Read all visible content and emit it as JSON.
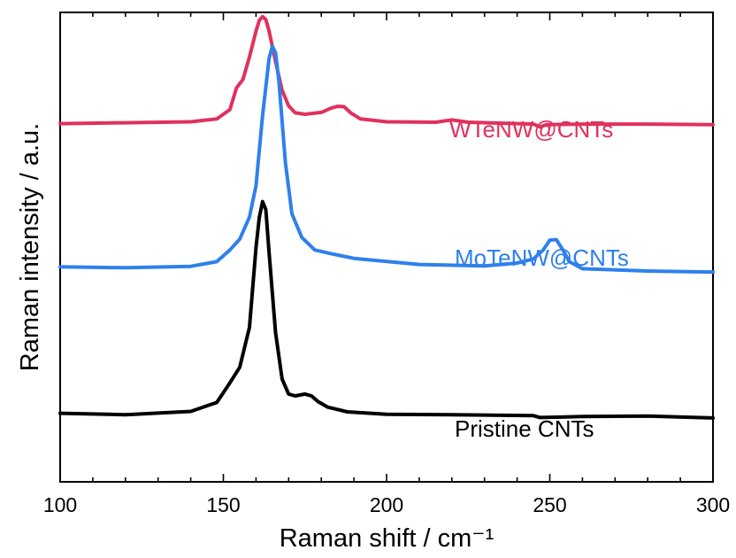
{
  "chart_data": {
    "type": "line",
    "title": "",
    "xlabel": "Raman shift / cm⁻¹",
    "ylabel": "Raman intensity / a.u.",
    "xlim": [
      100,
      300
    ],
    "ylim": [
      0,
      1
    ],
    "x_ticks": [
      100,
      150,
      200,
      250,
      300
    ],
    "x_tick_labels": [
      "100",
      "150",
      "200",
      "250",
      "300"
    ],
    "y_ticks_labeled": false,
    "grid": false,
    "legend": "inline labels above each trace",
    "series": [
      {
        "name": "WTeNW@CNTs",
        "color": "#e0315d",
        "x": [
          100,
          120,
          140,
          148,
          152,
          154,
          156,
          158,
          160,
          161,
          162,
          163,
          164,
          166,
          168,
          170,
          172,
          175,
          180,
          183,
          185,
          187,
          189,
          192,
          200,
          215,
          220,
          225,
          245,
          247,
          249,
          260,
          280,
          300
        ],
        "y": [
          0.763,
          0.765,
          0.767,
          0.773,
          0.793,
          0.839,
          0.857,
          0.905,
          0.96,
          0.983,
          0.991,
          0.985,
          0.96,
          0.895,
          0.834,
          0.801,
          0.786,
          0.783,
          0.787,
          0.796,
          0.8,
          0.799,
          0.786,
          0.773,
          0.767,
          0.766,
          0.771,
          0.766,
          0.762,
          0.756,
          0.761,
          0.762,
          0.762,
          0.761
        ]
      },
      {
        "name": "MoTeNW@CNTs",
        "color": "#2f80ed",
        "x": [
          100,
          120,
          140,
          148,
          152,
          155,
          158,
          160,
          162,
          164,
          165,
          166,
          167,
          169,
          171,
          174,
          178,
          183,
          190,
          210,
          230,
          240,
          245,
          248,
          250,
          252,
          254,
          256,
          260,
          280,
          300
        ],
        "y": [
          0.458,
          0.456,
          0.459,
          0.469,
          0.494,
          0.517,
          0.564,
          0.631,
          0.78,
          0.902,
          0.928,
          0.914,
          0.855,
          0.681,
          0.571,
          0.521,
          0.494,
          0.486,
          0.476,
          0.463,
          0.46,
          0.466,
          0.475,
          0.494,
          0.515,
          0.516,
          0.494,
          0.469,
          0.454,
          0.449,
          0.447
        ]
      },
      {
        "name": "Pristine CNTs",
        "color": "#000000",
        "x": [
          100,
          120,
          140,
          148,
          152,
          155,
          158,
          160,
          161,
          162,
          163,
          164,
          166,
          168,
          170,
          172,
          175,
          177,
          179,
          182,
          188,
          200,
          220,
          245,
          247,
          260,
          280,
          300
        ],
        "y": [
          0.146,
          0.143,
          0.15,
          0.169,
          0.211,
          0.244,
          0.329,
          0.499,
          0.563,
          0.597,
          0.58,
          0.488,
          0.318,
          0.219,
          0.187,
          0.183,
          0.187,
          0.183,
          0.171,
          0.159,
          0.149,
          0.144,
          0.143,
          0.141,
          0.137,
          0.139,
          0.14,
          0.136
        ]
      }
    ]
  }
}
